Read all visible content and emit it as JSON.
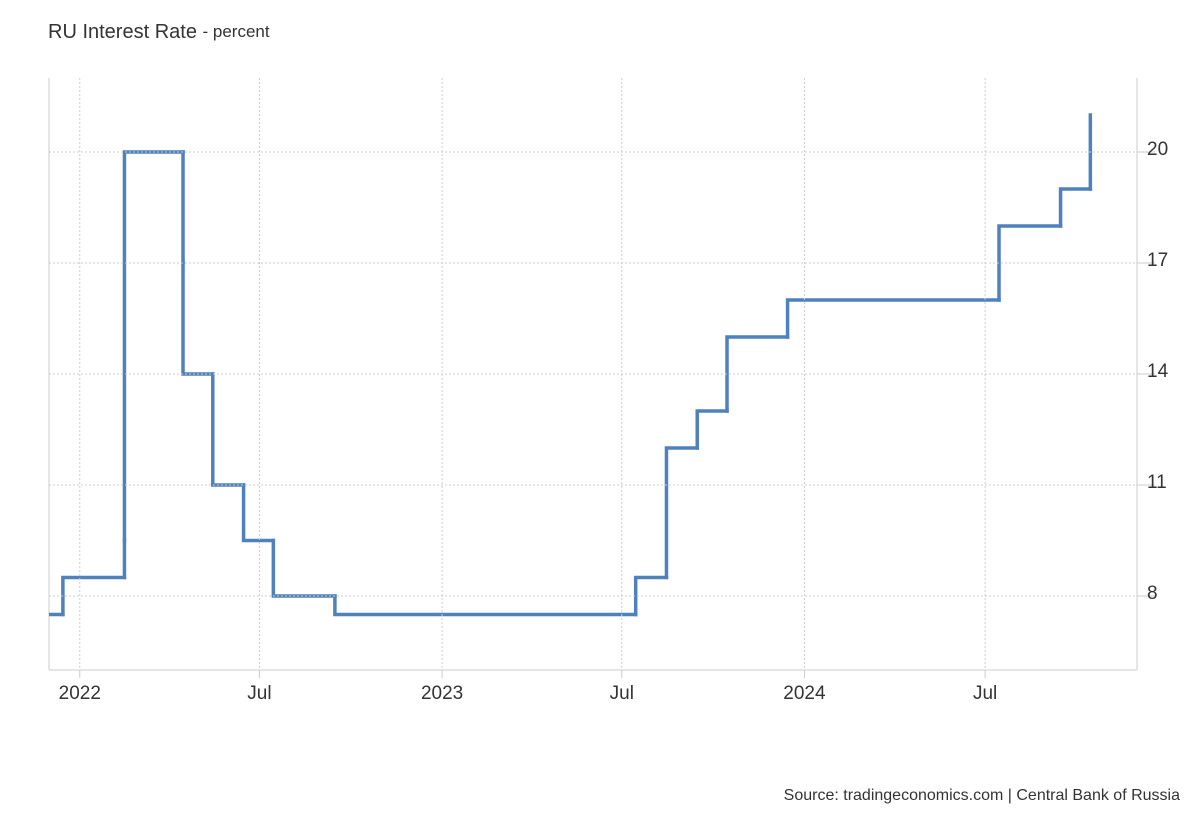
{
  "chart_data": {
    "type": "step-line",
    "title": "RU Interest Rate",
    "subtitle": "- percent",
    "source": "Source: tradingeconomics.com | Central Bank of Russia",
    "x": [
      "2021-11",
      "2021-12",
      "2022-02",
      "2022-02",
      "2022-04",
      "2022-04",
      "2022-05",
      "2022-06",
      "2022-07",
      "2022-09",
      "2023-07",
      "2023-08",
      "2023-09",
      "2023-10",
      "2023-12",
      "2024-07",
      "2024-09",
      "2024-10"
    ],
    "series": [
      {
        "color": "#4f81bd",
        "values": [
          7.5,
          8.5,
          9.5,
          20,
          17,
          14,
          11,
          9.5,
          8,
          7.5,
          8.5,
          12,
          13,
          15,
          16,
          18,
          19,
          21
        ]
      }
    ],
    "xlim": [
      "2021-12",
      "2024-12"
    ],
    "xticks": [
      {
        "value": "2022-01",
        "label": "2022"
      },
      {
        "value": "2022-07",
        "label": "Jul"
      },
      {
        "value": "2023-01",
        "label": "2023"
      },
      {
        "value": "2023-07",
        "label": "Jul"
      },
      {
        "value": "2024-01",
        "label": "2024"
      },
      {
        "value": "2024-07",
        "label": "Jul"
      }
    ],
    "ylim": [
      6,
      22
    ],
    "yticks": [
      8,
      11,
      14,
      17,
      20
    ],
    "grid": true
  }
}
